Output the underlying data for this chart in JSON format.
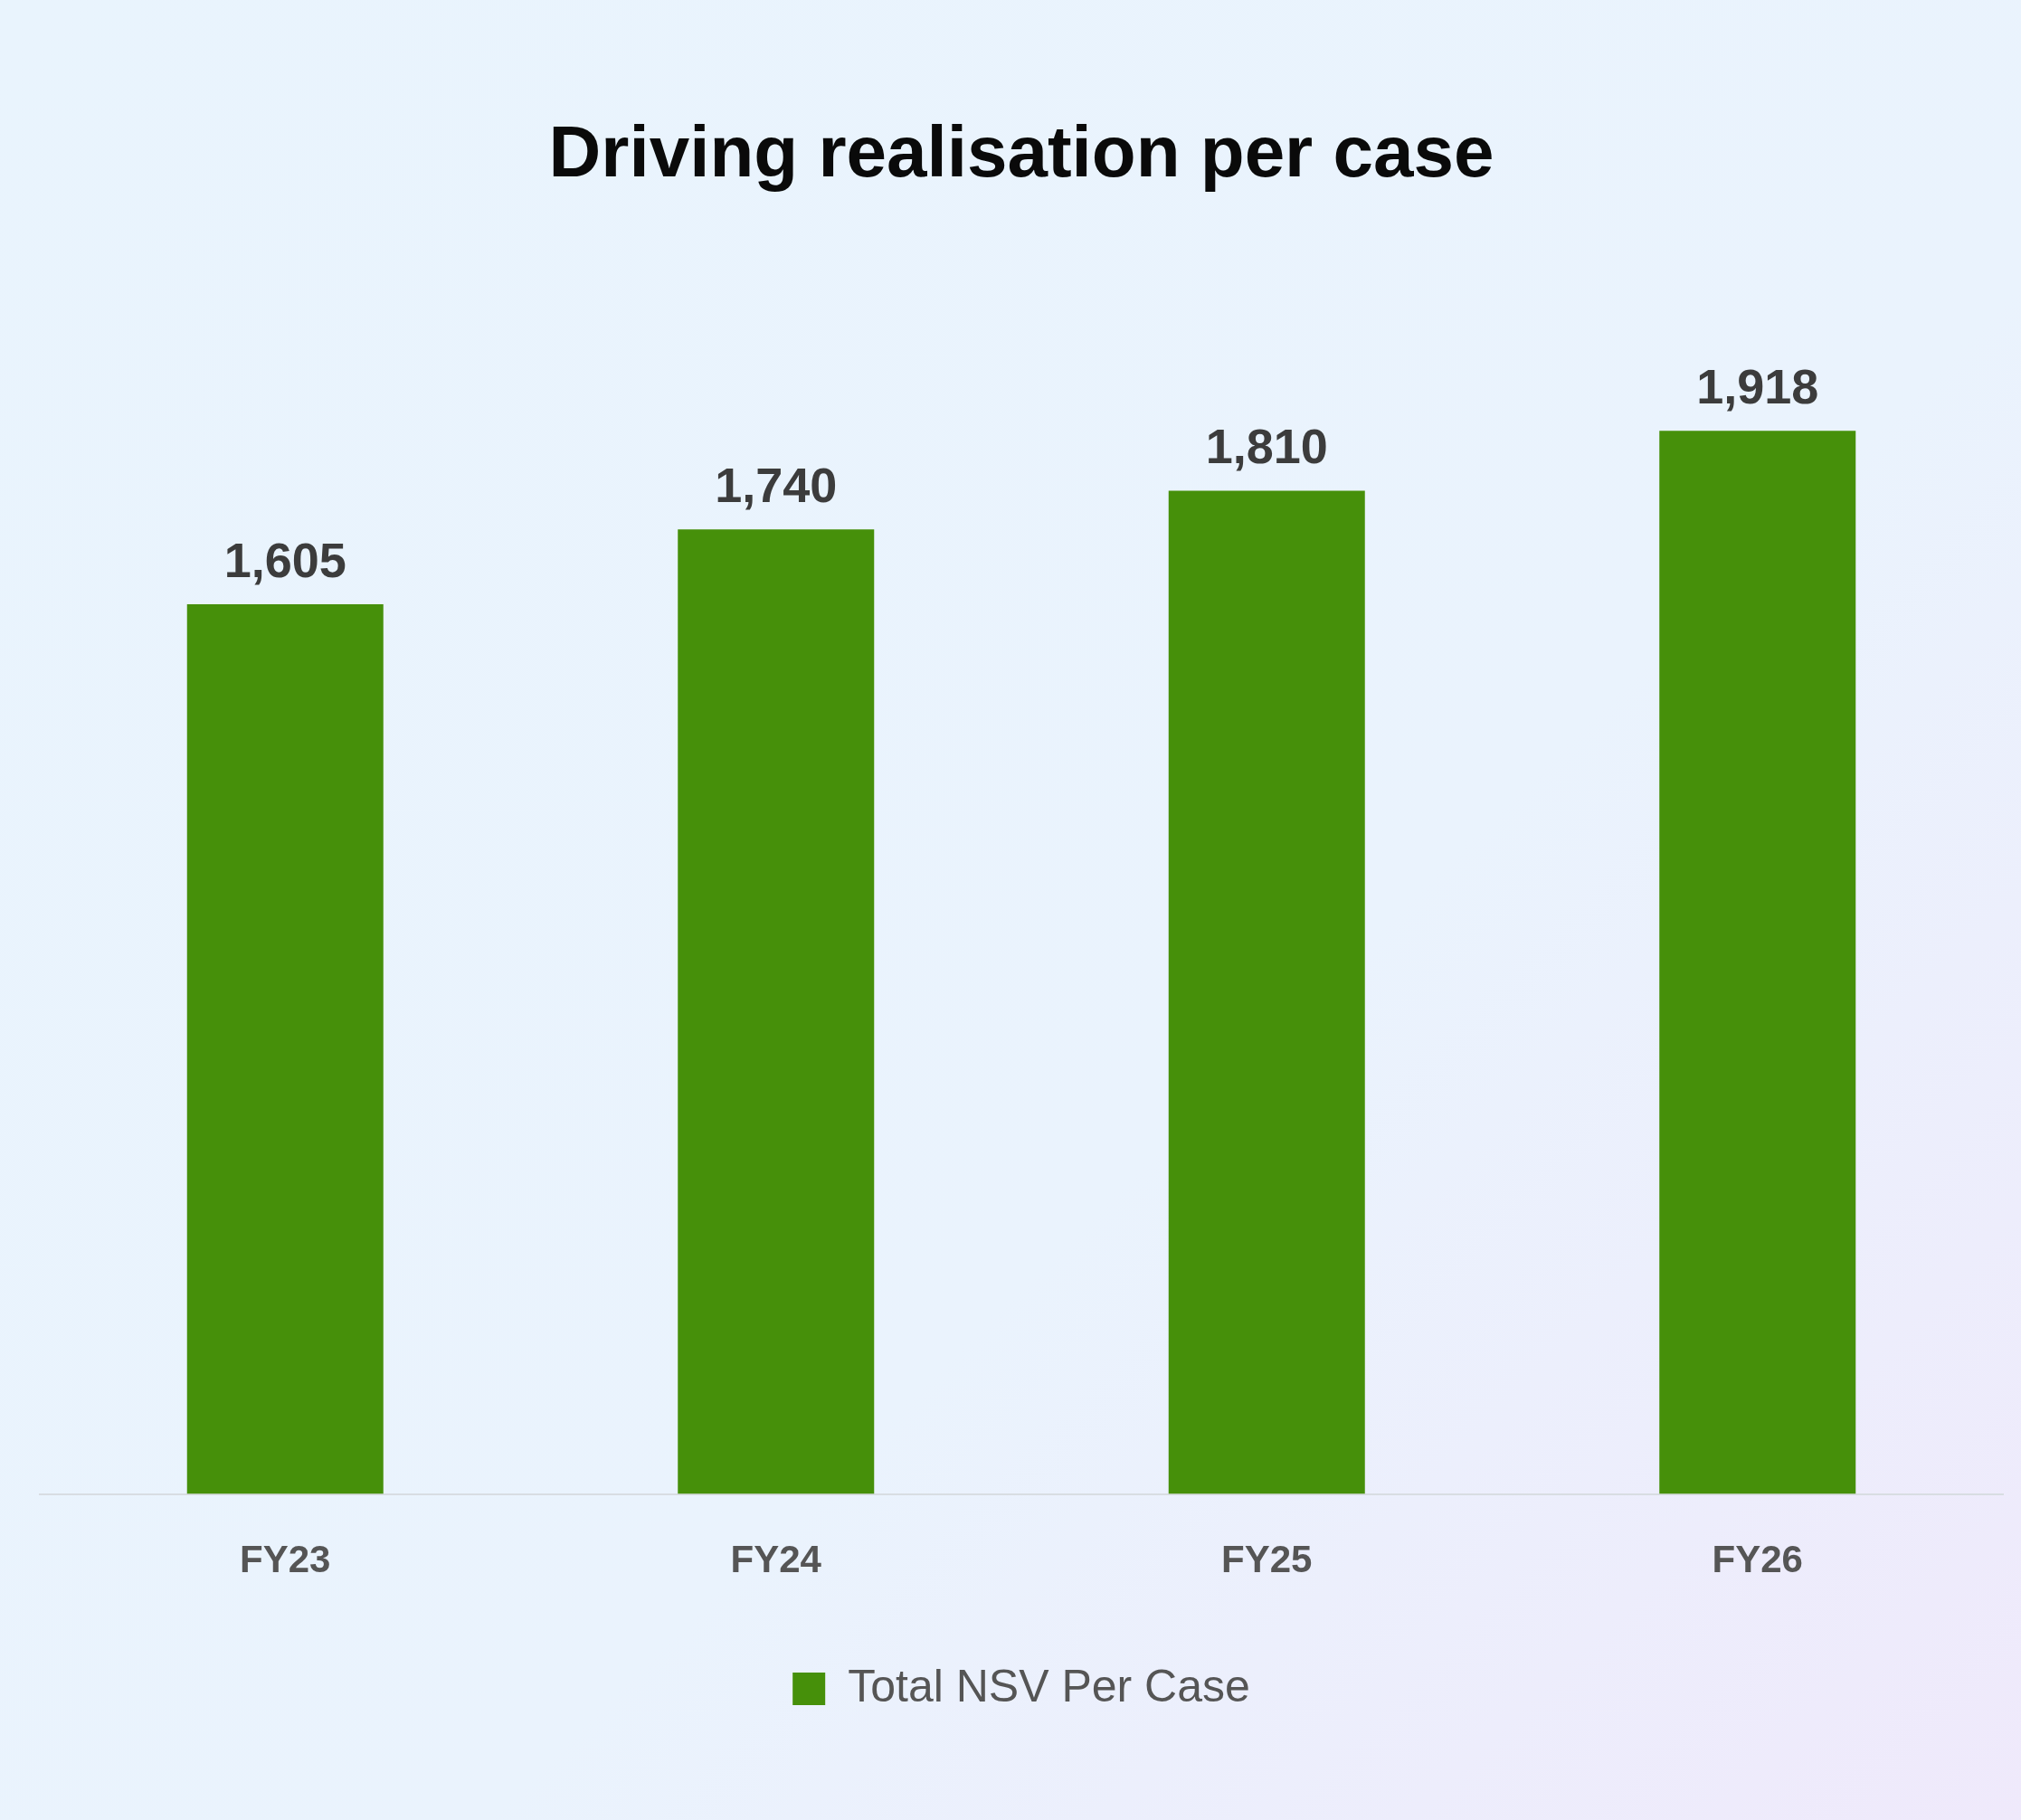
{
  "chart_data": {
    "type": "bar",
    "title": "Driving realisation per case",
    "categories": [
      "FY23",
      "FY24",
      "FY25",
      "FY26"
    ],
    "series": [
      {
        "name": "Total NSV Per Case",
        "color": "#46900a",
        "values": [
          1605,
          1740,
          1810,
          1918
        ],
        "value_labels": [
          "1,605",
          "1,740",
          "1,810",
          "1,918"
        ]
      }
    ],
    "legend": "bottom",
    "grid": false
  }
}
